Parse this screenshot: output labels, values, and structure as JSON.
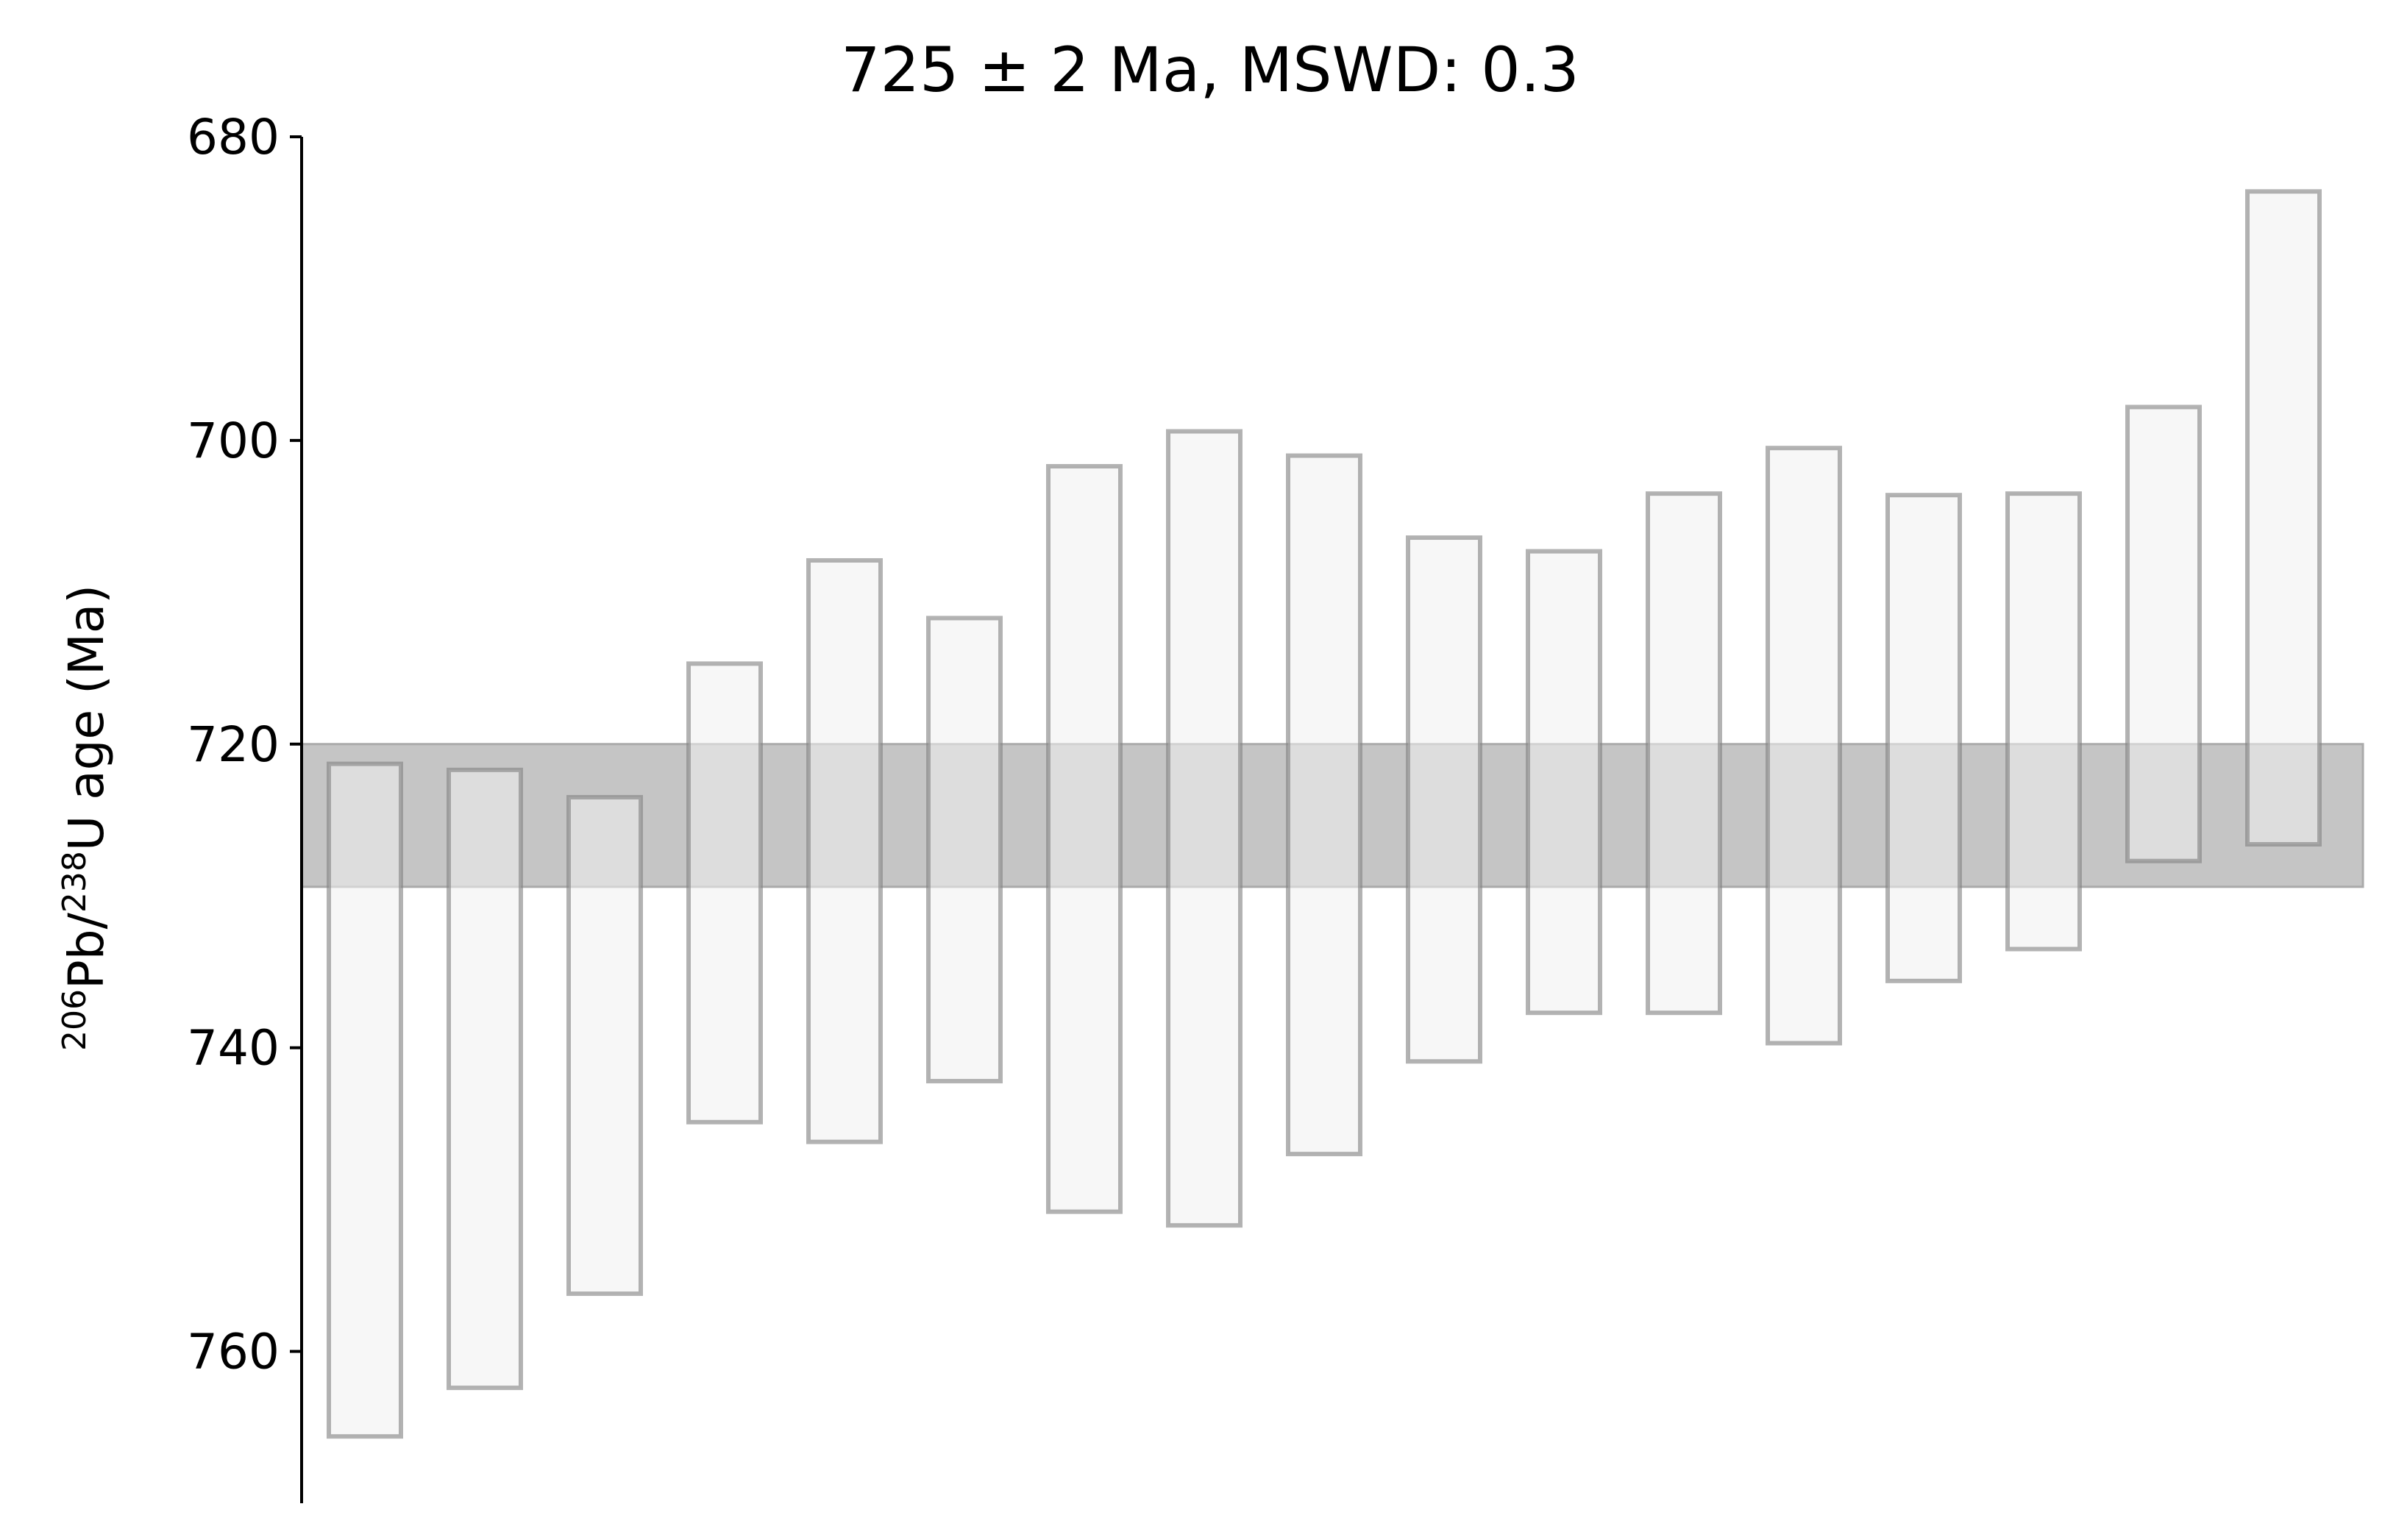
{
  "chart_data": {
    "type": "bar",
    "title": "725 ± 2 Ma, MSWD: 0.3",
    "ylabel": {
      "iso1_mass": "206",
      "iso1_el": "Pb/",
      "iso2_mass": "238",
      "iso2_el": "U age (Ma)"
    },
    "xlabel": "",
    "ylim": [
      770,
      680
    ],
    "y_inverted": true,
    "yticks": [
      "680",
      "700",
      "720",
      "740",
      "760"
    ],
    "ytick_values": [
      680,
      700,
      720,
      740,
      760
    ],
    "weighted_mean": {
      "value": 725,
      "lower": 720.0,
      "upper": 729.4
    },
    "bars": [
      {
        "low": 721.3,
        "high": 765.6
      },
      {
        "low": 721.7,
        "high": 762.4
      },
      {
        "low": 723.5,
        "high": 756.2
      },
      {
        "low": 714.7,
        "high": 744.9
      },
      {
        "low": 707.9,
        "high": 746.2
      },
      {
        "low": 711.7,
        "high": 742.2
      },
      {
        "low": 701.7,
        "high": 750.8
      },
      {
        "low": 699.4,
        "high": 751.7
      },
      {
        "low": 701.0,
        "high": 747.0
      },
      {
        "low": 706.4,
        "high": 740.9
      },
      {
        "low": 707.3,
        "high": 737.7
      },
      {
        "low": 703.5,
        "high": 737.7
      },
      {
        "low": 700.5,
        "high": 739.7
      },
      {
        "low": 703.6,
        "high": 735.6
      },
      {
        "low": 703.5,
        "high": 733.5
      },
      {
        "low": 697.8,
        "high": 727.7
      },
      {
        "low": 683.6,
        "high": 726.6
      }
    ],
    "colors": {
      "bar_fill": "#f0f0f0",
      "bar_edge": "#b0b0b0",
      "band_fill": "#c2c2c2",
      "band_edge": "#aaaaaa",
      "axis": "#000000"
    }
  }
}
